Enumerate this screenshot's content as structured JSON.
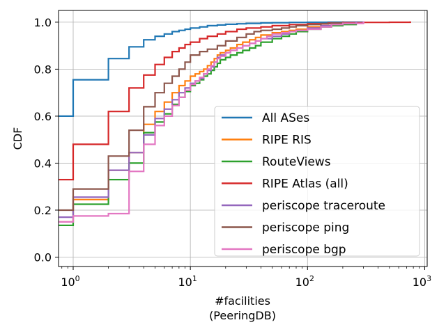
{
  "chart_data": {
    "type": "line",
    "title": "",
    "xlabel": "#facilities",
    "xlabel2": "(PeeringDB)",
    "ylabel": "CDF",
    "xscale": "log",
    "xlim": [
      0.75,
      1050
    ],
    "ylim": [
      -0.04,
      1.05
    ],
    "grid": true,
    "legend_position": "lower-right",
    "x_ticks": [
      {
        "value": 1,
        "base": "10",
        "exp": "0"
      },
      {
        "value": 10,
        "base": "10",
        "exp": "1"
      },
      {
        "value": 100,
        "base": "10",
        "exp": "2"
      },
      {
        "value": 1000,
        "base": "10",
        "exp": "3"
      }
    ],
    "y_ticks": [
      {
        "value": 0.0,
        "label": "0.0"
      },
      {
        "value": 0.2,
        "label": "0.2"
      },
      {
        "value": 0.4,
        "label": "0.4"
      },
      {
        "value": 0.6,
        "label": "0.6"
      },
      {
        "value": 0.8,
        "label": "0.8"
      },
      {
        "value": 1.0,
        "label": "1.0"
      }
    ],
    "series": [
      {
        "name": "All ASes",
        "color": "#1f77b4",
        "x": [
          0.75,
          1,
          2,
          3,
          4,
          5,
          6,
          7,
          8,
          9,
          10,
          12,
          14,
          17,
          20,
          25,
          30,
          40,
          50,
          70,
          100,
          150,
          200,
          300
        ],
        "y": [
          0.6,
          0.755,
          0.845,
          0.895,
          0.925,
          0.94,
          0.95,
          0.96,
          0.965,
          0.97,
          0.975,
          0.98,
          0.985,
          0.988,
          0.991,
          0.993,
          0.995,
          0.997,
          0.998,
          0.999,
          0.9995,
          0.9998,
          0.9999,
          1.0
        ]
      },
      {
        "name": "RIPE RIS",
        "color": "#ff7f0e",
        "x": [
          0.75,
          1,
          2,
          3,
          4,
          5,
          6,
          7,
          8,
          9,
          10,
          11,
          12,
          13,
          14,
          15,
          16,
          17,
          18,
          20,
          22,
          25,
          28,
          32,
          36,
          40,
          50,
          60,
          70,
          80,
          100,
          130,
          160,
          200,
          260
        ],
        "y": [
          0.15,
          0.245,
          0.37,
          0.445,
          0.565,
          0.62,
          0.66,
          0.7,
          0.73,
          0.75,
          0.77,
          0.78,
          0.79,
          0.8,
          0.815,
          0.83,
          0.845,
          0.86,
          0.87,
          0.88,
          0.89,
          0.905,
          0.915,
          0.925,
          0.935,
          0.945,
          0.955,
          0.96,
          0.965,
          0.97,
          0.98,
          0.985,
          0.99,
          0.995,
          1.0
        ]
      },
      {
        "name": "RouteViews",
        "color": "#2ca02c",
        "x": [
          0.75,
          1,
          2,
          3,
          4,
          5,
          6,
          7,
          8,
          9,
          10,
          11,
          12,
          13,
          14,
          15,
          16,
          17,
          18,
          20,
          22,
          25,
          28,
          32,
          36,
          40,
          50,
          60,
          70,
          80,
          100,
          130,
          160,
          200,
          260
        ],
        "y": [
          0.135,
          0.225,
          0.33,
          0.4,
          0.53,
          0.575,
          0.61,
          0.65,
          0.68,
          0.705,
          0.73,
          0.74,
          0.755,
          0.77,
          0.78,
          0.795,
          0.81,
          0.825,
          0.84,
          0.85,
          0.86,
          0.87,
          0.88,
          0.89,
          0.9,
          0.915,
          0.93,
          0.94,
          0.95,
          0.96,
          0.97,
          0.98,
          0.985,
          0.99,
          1.0
        ]
      },
      {
        "name": "RIPE Atlas (all)",
        "color": "#d62728",
        "x": [
          0.75,
          1,
          2,
          3,
          4,
          5,
          6,
          7,
          8,
          9,
          10,
          12,
          14,
          17,
          20,
          25,
          30,
          40,
          50,
          70,
          100,
          150,
          200,
          300,
          500,
          750
        ],
        "y": [
          0.33,
          0.48,
          0.62,
          0.72,
          0.775,
          0.82,
          0.85,
          0.875,
          0.89,
          0.905,
          0.915,
          0.93,
          0.94,
          0.95,
          0.96,
          0.97,
          0.975,
          0.98,
          0.985,
          0.99,
          0.993,
          0.996,
          0.998,
          0.999,
          0.9995,
          1.0
        ]
      },
      {
        "name": "periscope traceroute",
        "color": "#9467bd",
        "x": [
          0.75,
          1,
          2,
          3,
          4,
          5,
          6,
          7,
          8,
          9,
          10,
          11,
          12,
          13,
          14,
          15,
          16,
          17,
          18,
          20,
          22,
          25,
          28,
          32,
          36,
          40,
          50,
          60,
          70,
          80,
          100,
          130,
          160,
          200,
          260
        ],
        "y": [
          0.17,
          0.255,
          0.37,
          0.445,
          0.52,
          0.59,
          0.63,
          0.67,
          0.7,
          0.72,
          0.74,
          0.75,
          0.76,
          0.78,
          0.795,
          0.81,
          0.83,
          0.85,
          0.86,
          0.87,
          0.88,
          0.89,
          0.9,
          0.91,
          0.92,
          0.93,
          0.94,
          0.95,
          0.96,
          0.965,
          0.975,
          0.985,
          0.99,
          0.995,
          1.0
        ]
      },
      {
        "name": "periscope ping",
        "color": "#8c564b",
        "x": [
          0.75,
          1,
          2,
          3,
          4,
          5,
          6,
          7,
          8,
          9,
          10,
          12,
          14,
          17,
          20,
          25,
          30,
          35,
          40,
          50,
          60,
          70,
          80,
          100,
          130,
          160,
          200
        ],
        "y": [
          0.2,
          0.29,
          0.43,
          0.54,
          0.64,
          0.7,
          0.74,
          0.77,
          0.8,
          0.83,
          0.86,
          0.875,
          0.885,
          0.9,
          0.92,
          0.935,
          0.95,
          0.96,
          0.965,
          0.97,
          0.975,
          0.98,
          0.985,
          0.99,
          0.994,
          0.997,
          1.0
        ]
      },
      {
        "name": "periscope bgp",
        "color": "#e377c2",
        "x": [
          0.75,
          1,
          2,
          3,
          4,
          5,
          6,
          7,
          8,
          9,
          10,
          11,
          12,
          13,
          14,
          15,
          16,
          17,
          18,
          20,
          22,
          25,
          28,
          32,
          36,
          40,
          45,
          50,
          60,
          70,
          80,
          100,
          130,
          160,
          200,
          300
        ],
        "y": [
          0.15,
          0.175,
          0.185,
          0.365,
          0.48,
          0.56,
          0.6,
          0.645,
          0.68,
          0.71,
          0.735,
          0.75,
          0.765,
          0.78,
          0.8,
          0.815,
          0.83,
          0.845,
          0.855,
          0.87,
          0.88,
          0.89,
          0.9,
          0.91,
          0.92,
          0.93,
          0.94,
          0.95,
          0.955,
          0.96,
          0.965,
          0.97,
          0.98,
          0.99,
          0.995,
          1.0
        ]
      }
    ]
  }
}
